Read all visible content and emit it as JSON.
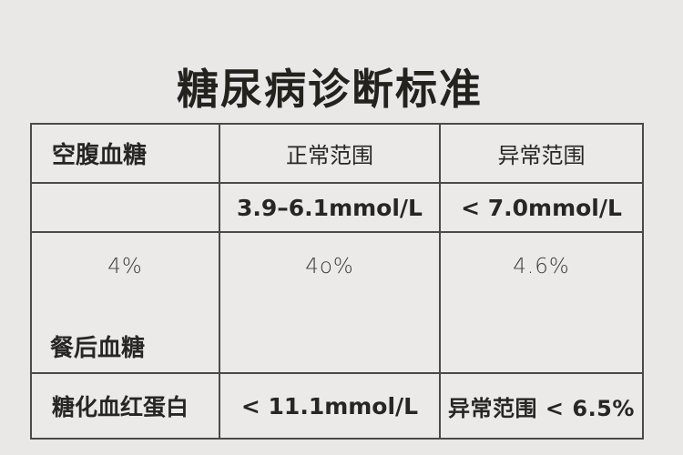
{
  "page": {
    "title": "糖尿病诊断标准"
  },
  "colors": {
    "background": "#e9e8e6",
    "table_background": "#eceae8",
    "border": "#4a4a4a",
    "text": "#282624"
  },
  "table": {
    "header": {
      "c1": "空腹血糖",
      "c2": "正常范围",
      "c3": "异常范围"
    },
    "row_fasting": {
      "c1": "",
      "c2": "3.9–6.1mmol/L",
      "c3": "< 7.0mmol/L"
    },
    "row_percent_values": {
      "c1": "4%",
      "c2": "4o%",
      "c3": "4.6%"
    },
    "row_postprandial_label": "餐后血糖",
    "row_glycated": {
      "c1": "糖化血红蛋白",
      "c2": "< 11.1mmol/L",
      "c3": "异常范围 < 6.5%"
    }
  },
  "chart_data": {
    "type": "table",
    "title": "糖尿病诊断标准",
    "columns": [
      "空腹血糖",
      "正常范围",
      "异常范围"
    ],
    "rows": [
      [
        "",
        "3.9–6.1mmol/L",
        "< 7.0mmol/L"
      ],
      [
        "4%",
        "4o%",
        "4.6%"
      ],
      [
        "餐后血糖",
        "",
        ""
      ],
      [
        "糖化血红蛋白",
        "< 11.1mmol/L",
        "异常范围 < 6.5%"
      ]
    ]
  }
}
